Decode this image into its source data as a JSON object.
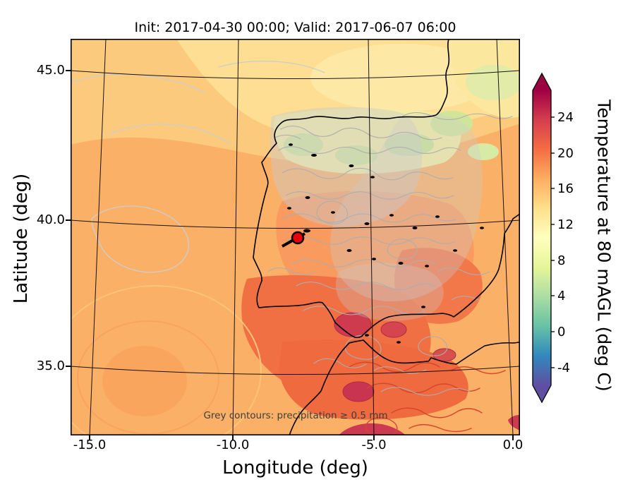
{
  "chart_data": {
    "type": "heatmap",
    "title": "Init: 2017-04-30 00:00; Valid: 2017-06-07 06:00",
    "xlabel": "Longitude (deg)",
    "ylabel": "Latitude (deg)",
    "x_ticks": [
      "-15.0",
      "-10.0",
      "-5.0",
      "0.0"
    ],
    "y_ticks": [
      "45.0",
      "40.0",
      "35.0"
    ],
    "xlim": [
      -15.7,
      0.3
    ],
    "ylim": [
      32.7,
      46.1
    ],
    "grid": true,
    "annotation": "Grey contours: precipitation ≥ 0.5 mm",
    "colorbar": {
      "label": "Temperature at 80 mAGL (deg C)",
      "ticks": [
        "24",
        "20",
        "16",
        "12",
        "8",
        "4",
        "0",
        "-4"
      ],
      "value_range": [
        -6,
        27
      ],
      "extend": "both",
      "orientation": "vertical",
      "colormap": [
        "#9e0142",
        "#d53e4f",
        "#f46d43",
        "#fdae61",
        "#fee08b",
        "#ffffbf",
        "#e6f598",
        "#abdda4",
        "#66c2a5",
        "#3288bd",
        "#5e4fa2"
      ]
    },
    "marker": {
      "lon": -7.6,
      "lat": 39.4,
      "color": "#e8000b"
    },
    "colors": {
      "precip_contour": "#b3b3b3",
      "coastline": "#000000",
      "graticule": "#000000"
    }
  }
}
